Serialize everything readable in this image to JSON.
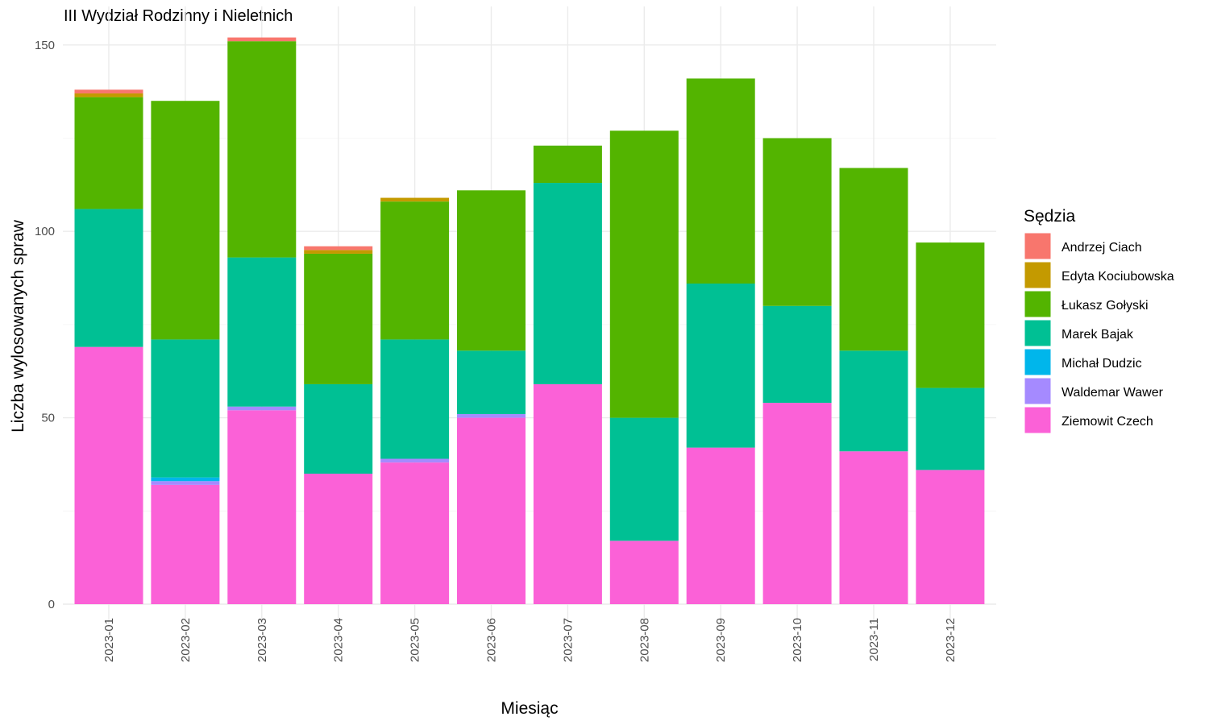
{
  "chart_data": {
    "type": "bar",
    "stacked": true,
    "title": "III Wydział Rodzinny i Nieletnich",
    "xlabel": "Miesiąc",
    "ylabel": "Liczba wylosowanych spraw",
    "ylim": [
      0,
      152
    ],
    "yticks": [
      0,
      50,
      100,
      150
    ],
    "grid": true,
    "legend": {
      "title": "Sędzia",
      "placement": "right"
    },
    "categories": [
      "2023-01",
      "2023-02",
      "2023-03",
      "2023-04",
      "2023-05",
      "2023-06",
      "2023-07",
      "2023-08",
      "2023-09",
      "2023-10",
      "2023-11",
      "2023-12"
    ],
    "series": [
      {
        "name": "Ziemowit Czech",
        "color": "#FB61D7",
        "values": [
          69,
          32,
          52,
          35,
          38,
          50,
          59,
          17,
          42,
          54,
          41,
          36
        ]
      },
      {
        "name": "Waldemar Wawer",
        "color": "#A58AFF",
        "values": [
          0,
          1,
          1,
          0,
          1,
          1,
          0,
          0,
          0,
          0,
          0,
          0
        ]
      },
      {
        "name": "Michał Dudzic",
        "color": "#00B6EB",
        "values": [
          0,
          1,
          0,
          0,
          0,
          0,
          0,
          0,
          0,
          0,
          0,
          0
        ]
      },
      {
        "name": "Marek Bajak",
        "color": "#00C094",
        "values": [
          37,
          37,
          40,
          24,
          32,
          17,
          54,
          33,
          44,
          26,
          27,
          22
        ]
      },
      {
        "name": "Łukasz Gołyski",
        "color": "#53B400",
        "values": [
          30,
          64,
          58,
          35,
          37,
          43,
          10,
          77,
          55,
          45,
          49,
          39
        ]
      },
      {
        "name": "Edyta Kociubowska",
        "color": "#C49A00",
        "values": [
          1,
          0,
          0,
          1,
          1,
          0,
          0,
          0,
          0,
          0,
          0,
          0
        ]
      },
      {
        "name": "Andrzej Ciach",
        "color": "#F8766D",
        "values": [
          1,
          0,
          1,
          1,
          0,
          0,
          0,
          0,
          0,
          0,
          0,
          0
        ]
      }
    ],
    "legend_order": [
      "Andrzej Ciach",
      "Edyta Kociubowska",
      "Łukasz Gołyski",
      "Marek Bajak",
      "Michał Dudzic",
      "Waldemar Wawer",
      "Ziemowit Czech"
    ]
  }
}
